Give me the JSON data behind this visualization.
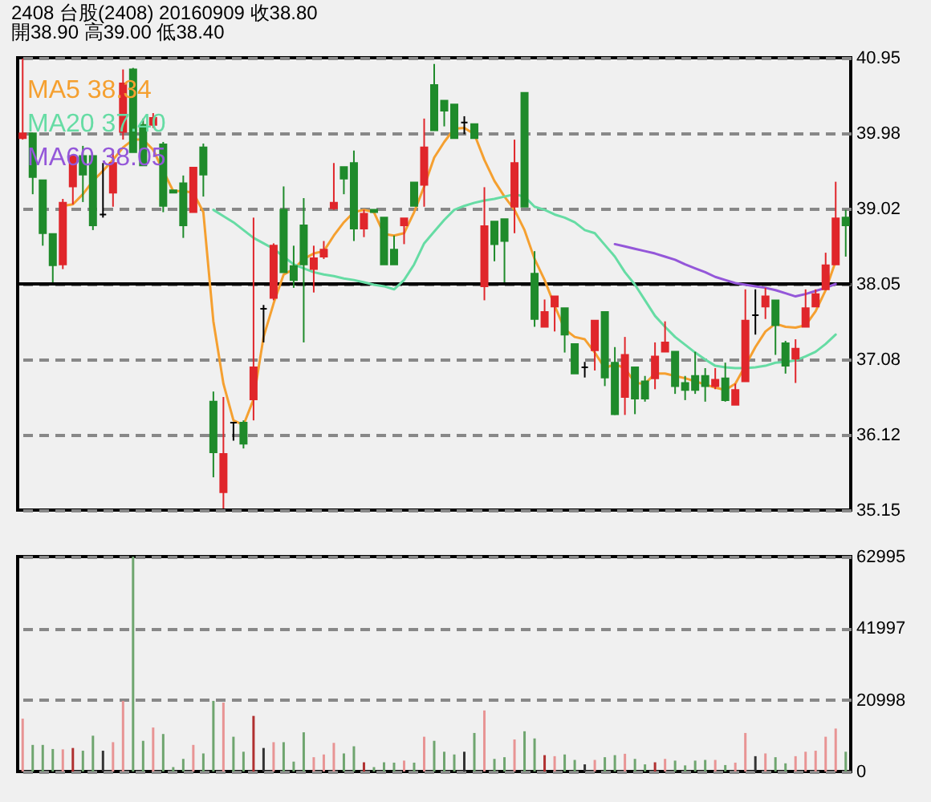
{
  "chart_data": [
    {
      "type": "candlestick",
      "title": "2408 台股(2408) 20160909 收38.80",
      "subtitle": "開38.90 高39.00 低38.40",
      "categories": [
        null,
        null,
        null,
        null,
        null,
        null,
        null,
        null,
        null,
        null,
        null,
        null,
        null,
        null,
        null,
        null,
        null,
        null,
        null,
        null,
        null,
        null,
        null,
        null,
        null,
        null,
        null,
        null,
        null,
        null,
        null,
        null,
        null,
        null,
        null,
        null,
        null,
        null,
        null,
        null,
        null,
        null,
        null,
        null,
        null,
        null,
        null,
        null,
        null,
        null,
        null,
        null,
        null,
        null,
        null,
        null,
        null,
        null,
        null,
        null,
        null,
        null,
        null,
        null,
        null,
        null,
        null,
        null,
        null,
        null,
        null,
        null,
        null,
        null,
        null,
        null,
        null,
        null,
        null,
        null,
        null,
        null,
        null
      ],
      "ohlc": [
        [
          39.92,
          40.94,
          39.9,
          39.98
        ],
        [
          39.98,
          39.98,
          39.2,
          39.42
        ],
        [
          39.38,
          39.38,
          38.54,
          38.7
        ],
        [
          38.69,
          38.69,
          38.07,
          38.29
        ],
        [
          38.3,
          39.14,
          38.24,
          39.09
        ],
        [
          39.3,
          39.69,
          39.07,
          39.69
        ],
        [
          39.69,
          39.82,
          39.1,
          39.45
        ],
        [
          39.69,
          39.69,
          38.74,
          38.8
        ],
        [
          38.94,
          39.6,
          38.9,
          38.94
        ],
        [
          39.22,
          39.77,
          39.04,
          39.6
        ],
        [
          40.0,
          40.8,
          39.9,
          40.62
        ],
        [
          40.8,
          40.82,
          39.74,
          39.74
        ],
        [
          40.09,
          40.17,
          39.57,
          39.57
        ],
        [
          40.09,
          40.24,
          40.05,
          40.18
        ],
        [
          39.84,
          39.87,
          38.97,
          39.05
        ],
        [
          39.25,
          39.25,
          39.22,
          39.22
        ],
        [
          39.34,
          39.44,
          38.64,
          38.8
        ],
        [
          38.97,
          39.54,
          38.97,
          39.54
        ],
        [
          39.8,
          39.85,
          39.17,
          39.45
        ],
        [
          36.54,
          36.67,
          35.57,
          35.89
        ],
        [
          35.38,
          36.6,
          35.17,
          35.87
        ],
        [
          36.27,
          36.27,
          36.04,
          36.27
        ],
        [
          36.27,
          36.3,
          35.94,
          36.0
        ],
        [
          36.57,
          38.9,
          36.3,
          36.98
        ],
        [
          37.73,
          37.78,
          37.3,
          37.73
        ],
        [
          37.87,
          38.57,
          37.84,
          38.54
        ],
        [
          39.0,
          39.3,
          38.2,
          38.2
        ],
        [
          38.28,
          38.54,
          38.0,
          38.1
        ],
        [
          38.8,
          39.15,
          37.3,
          38.3
        ],
        [
          38.24,
          38.54,
          37.94,
          38.38
        ],
        [
          38.4,
          38.6,
          38.37,
          38.49
        ],
        [
          39.02,
          39.6,
          39.0,
          39.09
        ],
        [
          39.55,
          39.55,
          39.2,
          39.4
        ],
        [
          39.6,
          39.76,
          38.6,
          38.76
        ],
        [
          38.76,
          39.0,
          38.65,
          38.95
        ],
        [
          39.0,
          39.0,
          38.97,
          38.97
        ],
        [
          38.9,
          38.9,
          38.3,
          38.3
        ],
        [
          38.49,
          38.67,
          38.3,
          38.3
        ],
        [
          38.8,
          38.89,
          38.56,
          38.89
        ],
        [
          39.35,
          39.35,
          39.05,
          39.05
        ],
        [
          39.32,
          40.17,
          39.04,
          39.8
        ],
        [
          40.6,
          40.87,
          40.02,
          40.02
        ],
        [
          40.4,
          40.4,
          40.07,
          40.27
        ],
        [
          40.35,
          40.35,
          39.92,
          39.92
        ],
        [
          40.12,
          40.2,
          39.97,
          40.12
        ],
        [
          40.1,
          40.1,
          39.92,
          39.92
        ],
        [
          38.02,
          39.29,
          37.84,
          38.79
        ],
        [
          38.85,
          38.85,
          38.34,
          38.56
        ],
        [
          38.88,
          38.88,
          38.07,
          38.6
        ],
        [
          39.04,
          39.9,
          38.7,
          39.6
        ],
        [
          40.5,
          40.5,
          39.04,
          39.04
        ],
        [
          38.18,
          38.47,
          37.5,
          37.6
        ],
        [
          37.5,
          37.85,
          37.5,
          37.69
        ],
        [
          37.76,
          37.89,
          37.44,
          37.89
        ],
        [
          37.74,
          37.74,
          37.17,
          37.4
        ],
        [
          37.28,
          37.28,
          36.9,
          36.9
        ],
        [
          36.98,
          37.05,
          36.85,
          36.98
        ],
        [
          37.2,
          37.58,
          36.94,
          37.58
        ],
        [
          37.69,
          37.69,
          36.74,
          36.85
        ],
        [
          37.04,
          37.24,
          36.37,
          36.38
        ],
        [
          36.6,
          37.37,
          36.37,
          37.14
        ],
        [
          36.98,
          36.98,
          36.38,
          36.58
        ],
        [
          36.8,
          36.87,
          36.54,
          36.58
        ],
        [
          36.84,
          37.3,
          36.7,
          37.12
        ],
        [
          37.18,
          37.57,
          37.18,
          37.3
        ],
        [
          37.18,
          37.18,
          36.64,
          36.74
        ],
        [
          36.78,
          36.87,
          36.56,
          36.69
        ],
        [
          36.87,
          37.18,
          36.64,
          36.69
        ],
        [
          36.87,
          36.97,
          36.54,
          36.74
        ],
        [
          36.74,
          36.97,
          36.7,
          36.82
        ],
        [
          36.84,
          37.04,
          36.54,
          36.56
        ],
        [
          36.5,
          36.77,
          36.5,
          36.69
        ],
        [
          36.8,
          37.98,
          36.8,
          37.58
        ],
        [
          37.65,
          37.98,
          37.4,
          37.65
        ],
        [
          37.76,
          38.0,
          37.6,
          37.89
        ],
        [
          37.84,
          37.84,
          37.14,
          37.52
        ],
        [
          37.29,
          37.32,
          36.9,
          37.0
        ],
        [
          37.09,
          37.34,
          36.78,
          37.22
        ],
        [
          37.5,
          37.98,
          37.5,
          37.74
        ],
        [
          37.76,
          37.98,
          37.76,
          37.92
        ],
        [
          37.98,
          38.45,
          37.97,
          38.29
        ],
        [
          38.3,
          39.36,
          38.3,
          38.89
        ],
        [
          38.9,
          39.0,
          38.4,
          38.8
        ]
      ],
      "colors": [
        "#e0262b",
        "#1f8b2b",
        "#1f8b2b",
        "#1f8b2b",
        "#e0262b",
        "#e0262b",
        "#1f8b2b",
        "#1f8b2b",
        "#000000",
        "#e0262b",
        "#e0262b",
        "#1f8b2b",
        "#1f8b2b",
        "#e0262b",
        "#1f8b2b",
        "#1f8b2b",
        "#1f8b2b",
        "#e0262b",
        "#1f8b2b",
        "#1f8b2b",
        "#e0262b",
        "#000000",
        "#1f8b2b",
        "#e0262b",
        "#000000",
        "#e0262b",
        "#1f8b2b",
        "#1f8b2b",
        "#1f8b2b",
        "#e0262b",
        "#e0262b",
        "#e0262b",
        "#1f8b2b",
        "#1f8b2b",
        "#e0262b",
        "#1f8b2b",
        "#1f8b2b",
        "#1f8b2b",
        "#e0262b",
        "#1f8b2b",
        "#e0262b",
        "#1f8b2b",
        "#1f8b2b",
        "#1f8b2b",
        "#000000",
        "#1f8b2b",
        "#e0262b",
        "#1f8b2b",
        "#1f8b2b",
        "#e0262b",
        "#1f8b2b",
        "#1f8b2b",
        "#e0262b",
        "#e0262b",
        "#1f8b2b",
        "#1f8b2b",
        "#000000",
        "#e0262b",
        "#1f8b2b",
        "#1f8b2b",
        "#e0262b",
        "#1f8b2b",
        "#1f8b2b",
        "#e0262b",
        "#e0262b",
        "#1f8b2b",
        "#1f8b2b",
        "#1f8b2b",
        "#1f8b2b",
        "#e0262b",
        "#1f8b2b",
        "#e0262b",
        "#e0262b",
        "#000000",
        "#e0262b",
        "#1f8b2b",
        "#1f8b2b",
        "#e0262b",
        "#e0262b",
        "#e0262b",
        "#e0262b",
        "#e0262b",
        "#1f8b2b"
      ],
      "series": [
        {
          "name": "MA5 38.34",
          "type": "line",
          "color": "#f5a030",
          "values": [
            null,
            null,
            null,
            null,
            39.05,
            39.07,
            39.2,
            39.37,
            39.5,
            39.64,
            39.8,
            39.9,
            39.9,
            39.77,
            39.5,
            39.24,
            39.24,
            39.22,
            38.97,
            37.57,
            36.77,
            36.3,
            36.24,
            36.57,
            37.37,
            37.8,
            38.17,
            38.24,
            38.37,
            38.44,
            38.47,
            38.67,
            38.84,
            38.97,
            39.0,
            38.97,
            38.69,
            38.67,
            38.7,
            38.97,
            39.3,
            39.67,
            39.87,
            40.04,
            40.05,
            39.97,
            39.64,
            39.37,
            39.17,
            39.0,
            38.74,
            38.37,
            38.1,
            37.77,
            37.47,
            37.37,
            37.34,
            37.17,
            36.97,
            37.02,
            36.97,
            36.78,
            36.77,
            36.9,
            36.9,
            36.87,
            36.84,
            36.8,
            36.76,
            36.72,
            36.69,
            36.77,
            37.0,
            37.24,
            37.44,
            37.54,
            37.5,
            37.49,
            37.52,
            37.7,
            37.97,
            38.34,
            null
          ]
        },
        {
          "name": "MA20 37.40",
          "type": "line",
          "color": "#66dca4",
          "values": [
            null,
            null,
            null,
            null,
            null,
            null,
            null,
            null,
            null,
            null,
            null,
            null,
            null,
            null,
            null,
            null,
            null,
            null,
            null,
            39.0,
            38.92,
            38.84,
            38.74,
            38.64,
            38.57,
            38.5,
            38.4,
            38.3,
            38.25,
            38.2,
            38.17,
            38.15,
            38.12,
            38.1,
            38.07,
            38.04,
            38.02,
            37.98,
            38.1,
            38.3,
            38.57,
            38.72,
            38.87,
            39.0,
            39.05,
            39.09,
            39.12,
            39.14,
            39.17,
            39.2,
            39.17,
            39.04,
            39.0,
            38.94,
            38.9,
            38.84,
            38.74,
            38.7,
            38.55,
            38.4,
            38.2,
            38.04,
            37.84,
            37.64,
            37.5,
            37.37,
            37.27,
            37.17,
            37.08,
            37.0,
            36.98,
            36.97,
            36.97,
            36.98,
            37.0,
            37.04,
            37.05,
            37.07,
            37.12,
            37.18,
            37.28,
            37.4,
            null
          ]
        },
        {
          "name": "MA60 38.05",
          "type": "line",
          "color": "#9457d9",
          "values": [
            null,
            null,
            null,
            null,
            null,
            null,
            null,
            null,
            null,
            null,
            null,
            null,
            null,
            null,
            null,
            null,
            null,
            null,
            null,
            null,
            null,
            null,
            null,
            null,
            null,
            null,
            null,
            null,
            null,
            null,
            null,
            null,
            null,
            null,
            null,
            null,
            null,
            null,
            null,
            null,
            null,
            null,
            null,
            null,
            null,
            null,
            null,
            null,
            null,
            null,
            null,
            null,
            null,
            null,
            null,
            null,
            null,
            null,
            null,
            38.56,
            38.53,
            38.5,
            38.47,
            38.44,
            38.4,
            38.36,
            38.3,
            38.25,
            38.2,
            38.14,
            38.1,
            38.06,
            38.04,
            38.02,
            38.0,
            37.97,
            37.93,
            37.89,
            37.92,
            37.96,
            38.0,
            38.05,
            null
          ]
        }
      ],
      "ylim": [
        35.15,
        40.95
      ],
      "yticks": [
        35.15,
        36.12,
        37.08,
        38.05,
        39.02,
        39.98,
        40.95
      ],
      "grid": "y",
      "ref_lines": [
        {
          "axis": "y",
          "value": 38.05,
          "color": "#000000"
        }
      ],
      "legend": "top left",
      "tick_labels": "y"
    },
    {
      "type": "bar",
      "categories": [
        null,
        null,
        null,
        null,
        null,
        null,
        null,
        null,
        null,
        null,
        null,
        null,
        null,
        null,
        null,
        null,
        null,
        null,
        null,
        null,
        null,
        null,
        null,
        null,
        null,
        null,
        null,
        null,
        null,
        null,
        null,
        null,
        null,
        null,
        null,
        null,
        null,
        null,
        null,
        null,
        null,
        null,
        null,
        null,
        null,
        null,
        null,
        null,
        null,
        null,
        null,
        null,
        null,
        null,
        null,
        null,
        null,
        null,
        null,
        null,
        null,
        null,
        null,
        null,
        null,
        null,
        null,
        null,
        null,
        null,
        null,
        null,
        null,
        null,
        null,
        null,
        null,
        null,
        null,
        null,
        null,
        null,
        null
      ],
      "values": [
        15500,
        7800,
        7800,
        6600,
        6500,
        6900,
        6100,
        10500,
        6100,
        8600,
        20700,
        62995,
        9000,
        12900,
        11000,
        1300,
        3700,
        7800,
        5300,
        20700,
        20200,
        10200,
        5800,
        16300,
        6900,
        8600,
        8600,
        2900,
        11500,
        4200,
        5000,
        8400,
        5300,
        7400,
        2700,
        1300,
        2700,
        2600,
        3200,
        2600,
        10200,
        9000,
        5800,
        5000,
        5800,
        11300,
        17900,
        3700,
        4200,
        9400,
        11800,
        9700,
        4800,
        4500,
        5000,
        3400,
        2100,
        3400,
        4200,
        4800,
        5200,
        3700,
        2100,
        2700,
        3700,
        3200,
        1800,
        3200,
        3400,
        3400,
        1900,
        2600,
        11300,
        4500,
        5300,
        4200,
        2400,
        4500,
        5800,
        6100,
        10200,
        12600,
        5800
      ],
      "colors": [
        "#e89494",
        "#6fa56f",
        "#6fa56f",
        "#6fa56f",
        "#e89494",
        "#b03030",
        "#6fa56f",
        "#6fa56f",
        "#333333",
        "#e89494",
        "#e89494",
        "#6fa56f",
        "#6fa56f",
        "#e89494",
        "#6fa56f",
        "#6fa56f",
        "#6fa56f",
        "#e89494",
        "#6fa56f",
        "#6fa56f",
        "#e89494",
        "#6fa56f",
        "#6fa56f",
        "#b03030",
        "#333333",
        "#e89494",
        "#6fa56f",
        "#6fa56f",
        "#6fa56f",
        "#e89494",
        "#e89494",
        "#e89494",
        "#6fa56f",
        "#6fa56f",
        "#b03030",
        "#6fa56f",
        "#6fa56f",
        "#6fa56f",
        "#e89494",
        "#6fa56f",
        "#e89494",
        "#6fa56f",
        "#6fa56f",
        "#6fa56f",
        "#333333",
        "#6fa56f",
        "#e89494",
        "#6fa56f",
        "#6fa56f",
        "#e89494",
        "#6fa56f",
        "#6fa56f",
        "#b03030",
        "#e89494",
        "#6fa56f",
        "#6fa56f",
        "#333333",
        "#e89494",
        "#6fa56f",
        "#6fa56f",
        "#e89494",
        "#6fa56f",
        "#6fa56f",
        "#b03030",
        "#e89494",
        "#6fa56f",
        "#6fa56f",
        "#6fa56f",
        "#6fa56f",
        "#e89494",
        "#6fa56f",
        "#e89494",
        "#e89494",
        "#333333",
        "#e89494",
        "#6fa56f",
        "#6fa56f",
        "#e89494",
        "#e89494",
        "#e89494",
        "#e89494",
        "#e89494",
        "#6fa56f"
      ],
      "ylim": [
        0,
        62995
      ],
      "yticks": [
        0,
        20998,
        41997,
        62995
      ],
      "grid": "y",
      "tick_labels": "y"
    }
  ]
}
